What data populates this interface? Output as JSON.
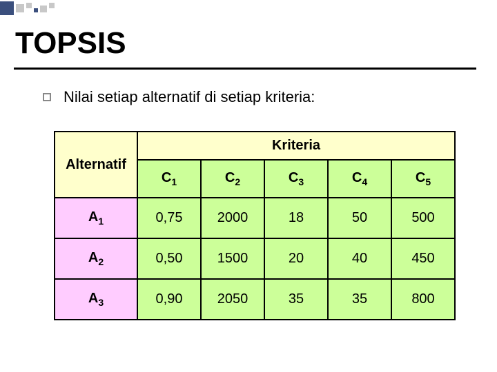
{
  "title": "TOPSIS",
  "subtitle": "Nilai setiap alternatif di setiap kriteria:",
  "table": {
    "corner_label": "Alternatif",
    "criteria_group_label": "Kriteria",
    "columns": [
      {
        "base": "C",
        "sub": "1"
      },
      {
        "base": "C",
        "sub": "2"
      },
      {
        "base": "C",
        "sub": "3"
      },
      {
        "base": "C",
        "sub": "4"
      },
      {
        "base": "C",
        "sub": "5"
      }
    ],
    "rows": [
      {
        "label": {
          "base": "A",
          "sub": "1"
        },
        "cells": [
          "0,75",
          "2000",
          "18",
          "50",
          "500"
        ]
      },
      {
        "label": {
          "base": "A",
          "sub": "2"
        },
        "cells": [
          "0,50",
          "1500",
          "20",
          "40",
          "450"
        ]
      },
      {
        "label": {
          "base": "A",
          "sub": "3"
        },
        "cells": [
          "0,90",
          "2050",
          "35",
          "35",
          "800"
        ]
      }
    ],
    "colors": {
      "header_bg": "#ffffcc",
      "col_header_bg": "#ccff99",
      "row_header_bg": "#ffccff",
      "cell_bg": "#ccff99",
      "border": "#000000"
    },
    "fontsize": 20
  }
}
